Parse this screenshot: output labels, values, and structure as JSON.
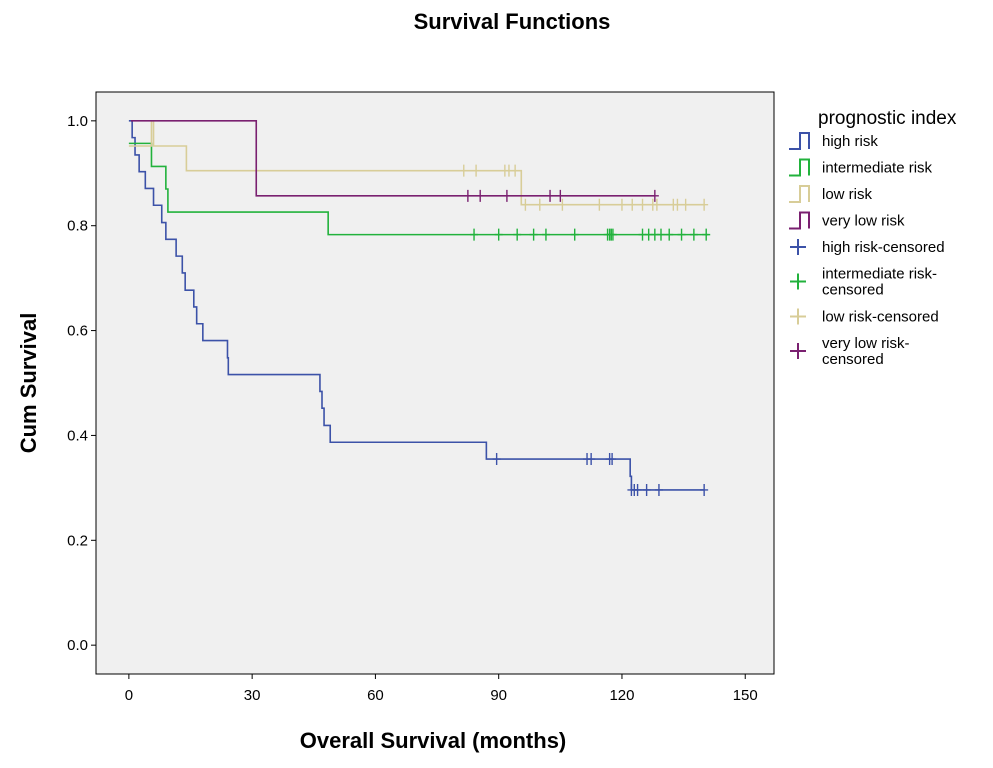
{
  "chart_data": {
    "type": "line",
    "title": "Survival Functions",
    "xlabel": "Overall Survival (months)",
    "ylabel": "Cum Survival",
    "xlim": [
      -8,
      157
    ],
    "ylim": [
      -0.055,
      1.055
    ],
    "xticks": [
      0,
      30,
      60,
      90,
      120,
      150
    ],
    "yticks": [
      0.0,
      0.2,
      0.4,
      0.6,
      0.8,
      1.0
    ],
    "xtick_labels": [
      "0",
      "30",
      "60",
      "90",
      "120",
      "150"
    ],
    "ytick_labels": [
      "0.0",
      "0.2",
      "0.4",
      "0.6",
      "0.8",
      "1.0"
    ],
    "plot_background": "#f0f0f0",
    "grid": false,
    "legend": {
      "title": "prognostic index",
      "placement": "right",
      "entries": [
        {
          "label": [
            "high risk"
          ],
          "marker": "step",
          "color": "#3c52a8"
        },
        {
          "label": [
            "intermediate risk"
          ],
          "marker": "step",
          "color": "#22b23c"
        },
        {
          "label": [
            "low risk"
          ],
          "marker": "step",
          "color": "#d8cd98"
        },
        {
          "label": [
            "very low risk"
          ],
          "marker": "step",
          "color": "#7a2070"
        },
        {
          "label": [
            "high risk-censored"
          ],
          "marker": "plus",
          "color": "#3c52a8"
        },
        {
          "label": [
            "intermediate risk-",
            "censored"
          ],
          "marker": "plus",
          "color": "#22b23c"
        },
        {
          "label": [
            "low risk-censored"
          ],
          "marker": "plus",
          "color": "#d8cd98"
        },
        {
          "label": [
            "very low risk-",
            "censored"
          ],
          "marker": "plus",
          "color": "#7a2070"
        }
      ]
    },
    "series": [
      {
        "name": "high risk",
        "color": "#3c52a8",
        "steps": [
          [
            0,
            1.0
          ],
          [
            0.8,
            0.968
          ],
          [
            1.5,
            0.935
          ],
          [
            2.5,
            0.903
          ],
          [
            4,
            0.871
          ],
          [
            6,
            0.839
          ],
          [
            8,
            0.806
          ],
          [
            9,
            0.774
          ],
          [
            11.5,
            0.742
          ],
          [
            13,
            0.71
          ],
          [
            13.7,
            0.677
          ],
          [
            15.8,
            0.645
          ],
          [
            16.5,
            0.613
          ],
          [
            18,
            0.581
          ],
          [
            24,
            0.548
          ],
          [
            24.2,
            0.516
          ],
          [
            46.5,
            0.484
          ],
          [
            47,
            0.452
          ],
          [
            47.5,
            0.419
          ],
          [
            49,
            0.387
          ],
          [
            87,
            0.355
          ],
          [
            122,
            0.322
          ],
          [
            122.3,
            0.296
          ]
        ],
        "end": 140,
        "censored": [
          [
            89.5,
            0.355
          ],
          [
            111.5,
            0.355
          ],
          [
            112.5,
            0.355
          ],
          [
            117,
            0.355
          ],
          [
            117.6,
            0.355
          ],
          [
            122.3,
            0.296
          ],
          [
            123,
            0.296
          ],
          [
            123.8,
            0.296
          ],
          [
            126,
            0.296
          ],
          [
            129,
            0.296
          ],
          [
            140,
            0.296
          ]
        ]
      },
      {
        "name": "intermediate risk",
        "color": "#22b23c",
        "steps": [
          [
            0,
            0.957
          ],
          [
            5.5,
            0.913
          ],
          [
            9,
            0.87
          ],
          [
            9.5,
            0.826
          ],
          [
            48.5,
            0.783
          ]
        ],
        "end": 141,
        "censored": [
          [
            84,
            0.783
          ],
          [
            90,
            0.783
          ],
          [
            94.5,
            0.783
          ],
          [
            98.5,
            0.783
          ],
          [
            101.5,
            0.783
          ],
          [
            108.5,
            0.783
          ],
          [
            116.5,
            0.783
          ],
          [
            117,
            0.783
          ],
          [
            117.4,
            0.783
          ],
          [
            117.8,
            0.783
          ],
          [
            125,
            0.783
          ],
          [
            126.5,
            0.783
          ],
          [
            128,
            0.783
          ],
          [
            129.5,
            0.783
          ],
          [
            131.5,
            0.783
          ],
          [
            134.5,
            0.783
          ],
          [
            137.5,
            0.783
          ],
          [
            140.5,
            0.783
          ]
        ]
      },
      {
        "name": "low risk",
        "color": "#d8cd98",
        "steps": [
          [
            0,
            0.952
          ],
          [
            5.5,
            1.0
          ],
          [
            6,
            0.952
          ],
          [
            14,
            0.905
          ],
          [
            95.5,
            0.84
          ]
        ],
        "end": 140,
        "censored": [
          [
            81.5,
            0.905
          ],
          [
            84.5,
            0.905
          ],
          [
            91.5,
            0.905
          ],
          [
            92.5,
            0.905
          ],
          [
            94,
            0.905
          ],
          [
            96.5,
            0.84
          ],
          [
            100,
            0.84
          ],
          [
            105.5,
            0.84
          ],
          [
            114.5,
            0.84
          ],
          [
            120,
            0.84
          ],
          [
            122.5,
            0.84
          ],
          [
            125,
            0.84
          ],
          [
            127.5,
            0.84
          ],
          [
            128.5,
            0.84
          ],
          [
            132.5,
            0.84
          ],
          [
            133.5,
            0.84
          ],
          [
            135.5,
            0.84
          ],
          [
            140,
            0.84
          ]
        ]
      },
      {
        "name": "very low risk",
        "color": "#7a2070",
        "steps": [
          [
            0.5,
            1.0
          ],
          [
            31,
            0.857
          ]
        ],
        "end": 128,
        "censored": [
          [
            82.5,
            0.857
          ],
          [
            85.5,
            0.857
          ],
          [
            92,
            0.857
          ],
          [
            102.5,
            0.857
          ],
          [
            105,
            0.857
          ],
          [
            128,
            0.857
          ]
        ]
      }
    ]
  }
}
